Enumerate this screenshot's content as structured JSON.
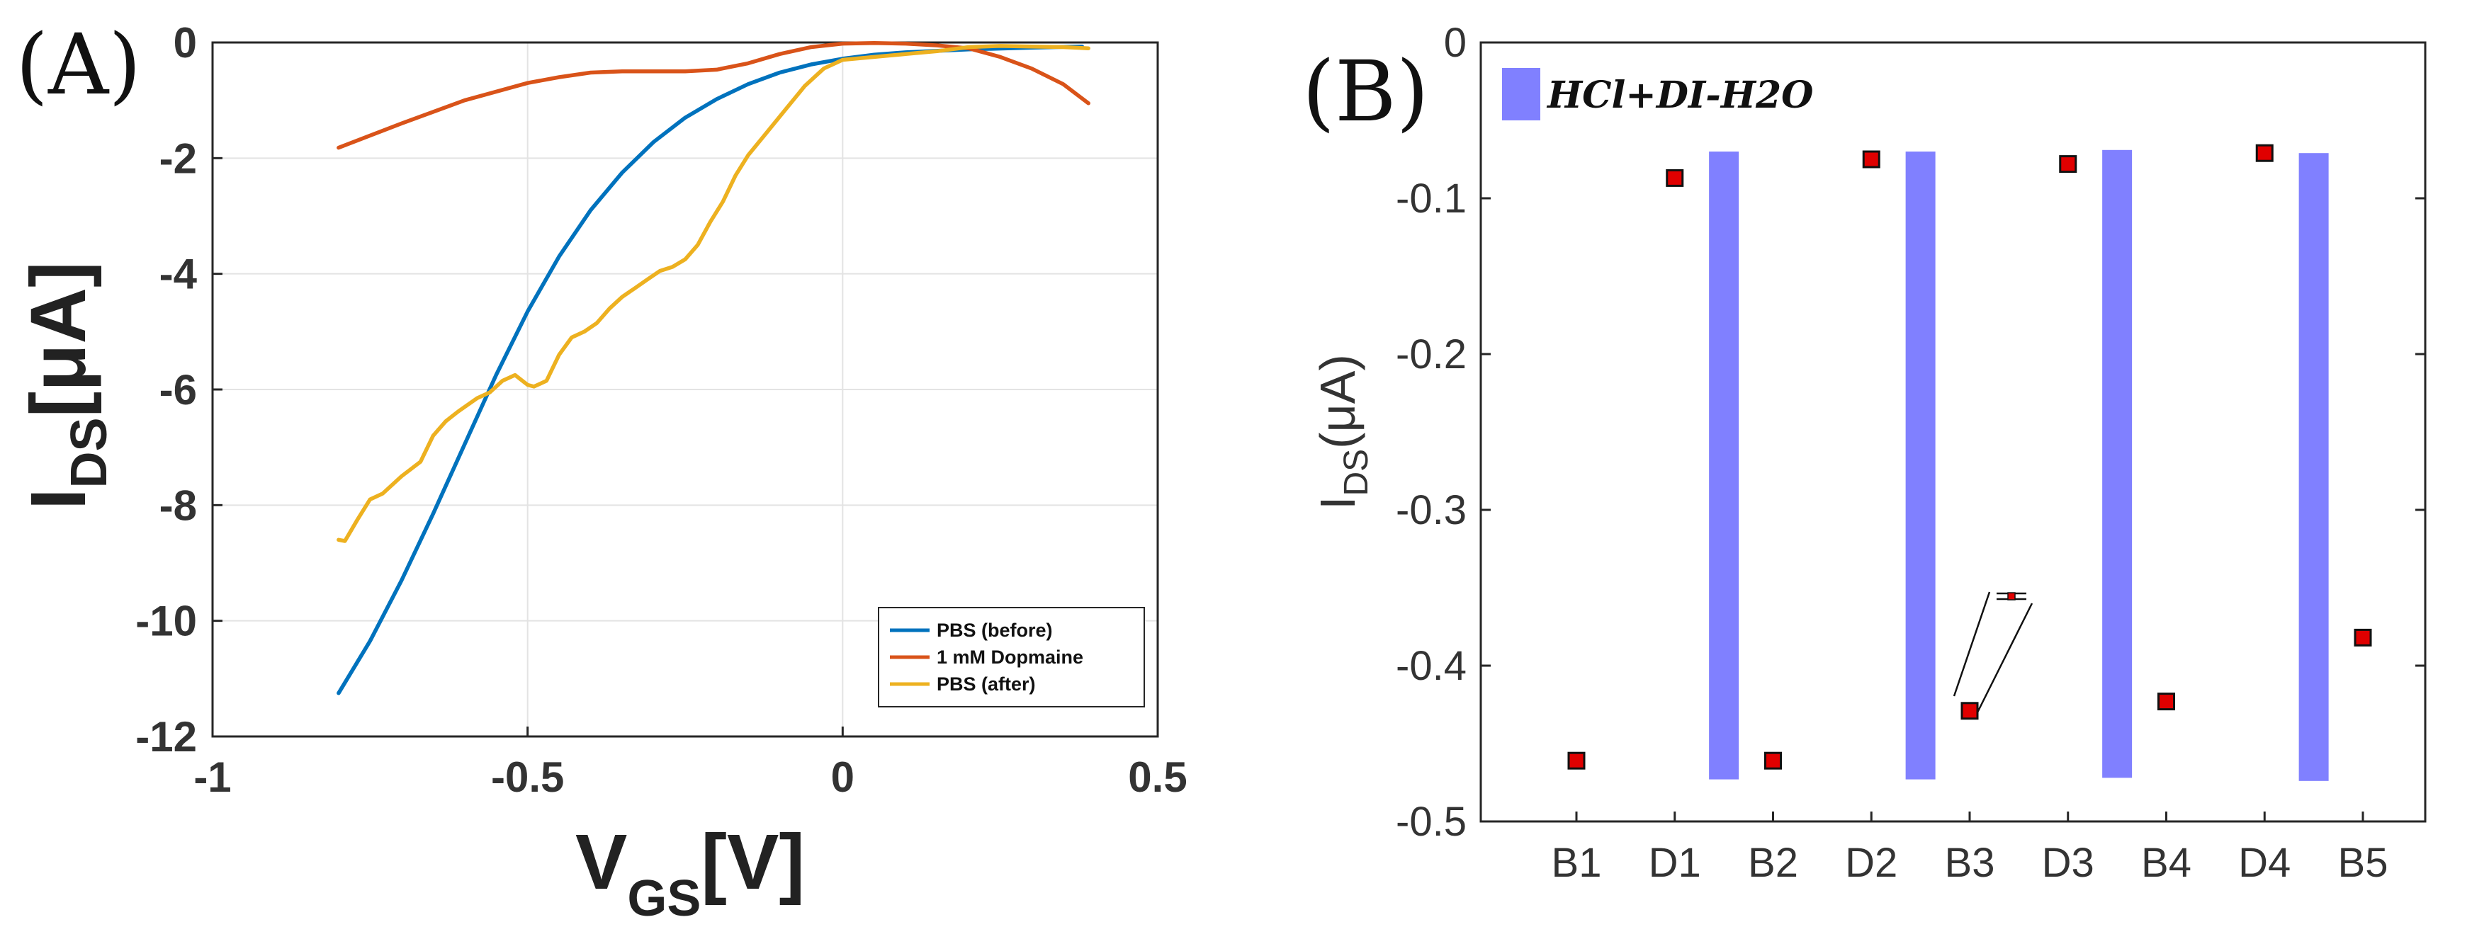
{
  "colors": {
    "pbs_before": "#0072BD",
    "dopamine": "#D95319",
    "pbs_after": "#EDB120",
    "bar": "#8080FF",
    "marker": "#E00000"
  },
  "chart_data": [
    {
      "panel_label": "(A)",
      "type": "line",
      "xlabel_main": "V",
      "xlabel_sub": "GS",
      "xlabel_unit": "[V]",
      "ylabel_main": "I",
      "ylabel_sub": "DS",
      "ylabel_unit": "[μA]",
      "xlim": [
        -1,
        0.5
      ],
      "ylim": [
        -12,
        0
      ],
      "xticks": [
        -1,
        -0.5,
        0,
        0.5
      ],
      "xtick_labels": [
        "-1",
        "-0.5",
        "0",
        "0.5"
      ],
      "yticks": [
        0,
        -2,
        -4,
        -6,
        -8,
        -10,
        -12
      ],
      "ytick_labels": [
        "0",
        "-2",
        "-4",
        "-6",
        "-8",
        "-10",
        "-12"
      ],
      "grid": true,
      "legend_position": "bottom-right",
      "series": [
        {
          "name": "PBS (before)",
          "color": "#0072BD",
          "x": [
            -0.8,
            -0.75,
            -0.7,
            -0.65,
            -0.6,
            -0.55,
            -0.5,
            -0.45,
            -0.4,
            -0.35,
            -0.3,
            -0.25,
            -0.2,
            -0.15,
            -0.1,
            -0.05,
            0,
            0.05,
            0.1,
            0.2,
            0.3,
            0.38
          ],
          "y": [
            -11.25,
            -10.35,
            -9.3,
            -8.15,
            -6.95,
            -5.75,
            -4.65,
            -3.7,
            -2.9,
            -2.25,
            -1.72,
            -1.3,
            -0.98,
            -0.72,
            -0.52,
            -0.38,
            -0.28,
            -0.21,
            -0.17,
            -0.12,
            -0.09,
            -0.07
          ]
        },
        {
          "name": "1 mM Dopmaine",
          "color": "#D95319",
          "x": [
            -0.8,
            -0.7,
            -0.6,
            -0.5,
            -0.45,
            -0.4,
            -0.35,
            -0.3,
            -0.25,
            -0.2,
            -0.15,
            -0.1,
            -0.05,
            0,
            0.05,
            0.1,
            0.15,
            0.2,
            0.25,
            0.3,
            0.35,
            0.39
          ],
          "y": [
            -1.82,
            -1.4,
            -1.0,
            -0.7,
            -0.6,
            -0.52,
            -0.5,
            -0.5,
            -0.5,
            -0.47,
            -0.36,
            -0.2,
            -0.08,
            -0.02,
            -0.01,
            -0.02,
            -0.05,
            -0.1,
            -0.25,
            -0.45,
            -0.72,
            -1.05
          ]
        },
        {
          "name": "PBS (after)",
          "color": "#EDB120",
          "x": [
            -0.8,
            -0.79,
            -0.77,
            -0.75,
            -0.73,
            -0.7,
            -0.67,
            -0.65,
            -0.63,
            -0.61,
            -0.58,
            -0.56,
            -0.54,
            -0.52,
            -0.5,
            -0.49,
            -0.47,
            -0.45,
            -0.43,
            -0.41,
            -0.39,
            -0.37,
            -0.35,
            -0.33,
            -0.31,
            -0.29,
            -0.27,
            -0.25,
            -0.23,
            -0.21,
            -0.19,
            -0.17,
            -0.15,
            -0.12,
            -0.09,
            -0.06,
            -0.03,
            0,
            0.05,
            0.1,
            0.15,
            0.2,
            0.25,
            0.3,
            0.35,
            0.39
          ],
          "y": [
            -8.6,
            -8.62,
            -8.25,
            -7.9,
            -7.8,
            -7.5,
            -7.25,
            -6.8,
            -6.55,
            -6.38,
            -6.15,
            -6.05,
            -5.85,
            -5.75,
            -5.92,
            -5.95,
            -5.85,
            -5.4,
            -5.1,
            -5.0,
            -4.85,
            -4.6,
            -4.4,
            -4.25,
            -4.1,
            -3.95,
            -3.88,
            -3.75,
            -3.5,
            -3.1,
            -2.75,
            -2.3,
            -1.95,
            -1.55,
            -1.15,
            -0.75,
            -0.45,
            -0.3,
            -0.25,
            -0.2,
            -0.15,
            -0.08,
            -0.06,
            -0.07,
            -0.08,
            -0.1
          ]
        }
      ]
    },
    {
      "panel_label": "(B)",
      "type": "bar",
      "ylabel_main": "I",
      "ylabel_sub": "DS",
      "ylabel_unit": "(μA)",
      "ylim": [
        -0.5,
        0
      ],
      "yticks": [
        0,
        -0.1,
        -0.2,
        -0.3,
        -0.4,
        -0.5
      ],
      "ytick_labels": [
        "0",
        "-0.1",
        "-0.2",
        "-0.3",
        "-0.4",
        "-0.5"
      ],
      "categories": [
        "B1",
        "D1",
        "B2",
        "D2",
        "B3",
        "D3",
        "B4",
        "D4",
        "B5"
      ],
      "legend_label": "HCl+DI-H2O",
      "legend_position": "top-left",
      "bars": [
        {
          "between": [
            "D1",
            "B2"
          ],
          "from": -0.07,
          "to": -0.473
        },
        {
          "between": [
            "D2",
            "B3"
          ],
          "from": -0.07,
          "to": -0.473
        },
        {
          "between": [
            "D3",
            "B4"
          ],
          "from": -0.069,
          "to": -0.472
        },
        {
          "between": [
            "D4",
            "B5"
          ],
          "from": -0.071,
          "to": -0.474
        }
      ],
      "points": [
        -0.461,
        -0.087,
        -0.461,
        -0.075,
        -0.429,
        -0.078,
        -0.423,
        -0.071,
        -0.382
      ]
    }
  ]
}
